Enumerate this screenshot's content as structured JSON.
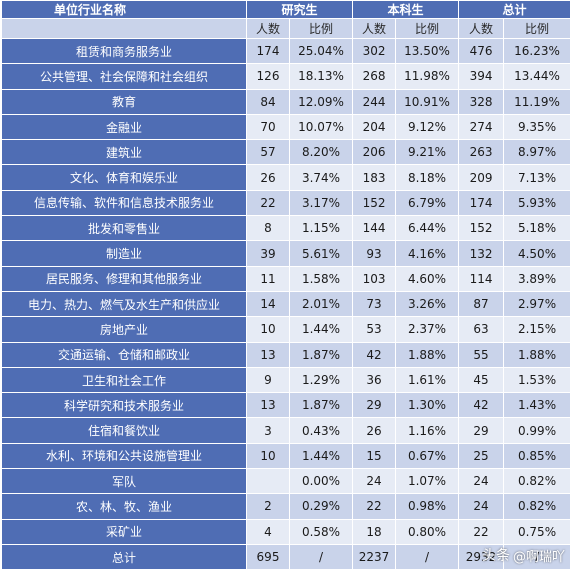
{
  "table": {
    "header": {
      "corner": "单位行业名称",
      "groups": [
        "研究生",
        "本科生",
        "总计"
      ],
      "sub": [
        "人数",
        "比例",
        "人数",
        "比例",
        "人数",
        "比例"
      ]
    },
    "rows": [
      {
        "name": "租赁和商务服务业",
        "cells": [
          "174",
          "25.04%",
          "302",
          "13.50%",
          "476",
          "16.23%"
        ]
      },
      {
        "name": "公共管理、社会保障和社会组织",
        "cells": [
          "126",
          "18.13%",
          "268",
          "11.98%",
          "394",
          "13.44%"
        ]
      },
      {
        "name": "教育",
        "cells": [
          "84",
          "12.09%",
          "244",
          "10.91%",
          "328",
          "11.19%"
        ]
      },
      {
        "name": "金融业",
        "cells": [
          "70",
          "10.07%",
          "204",
          "9.12%",
          "274",
          "9.35%"
        ]
      },
      {
        "name": "建筑业",
        "cells": [
          "57",
          "8.20%",
          "206",
          "9.21%",
          "263",
          "8.97%"
        ]
      },
      {
        "name": "文化、体育和娱乐业",
        "cells": [
          "26",
          "3.74%",
          "183",
          "8.18%",
          "209",
          "7.13%"
        ]
      },
      {
        "name": "信息传输、软件和信息技术服务业",
        "cells": [
          "22",
          "3.17%",
          "152",
          "6.79%",
          "174",
          "5.93%"
        ]
      },
      {
        "name": "批发和零售业",
        "cells": [
          "8",
          "1.15%",
          "144",
          "6.44%",
          "152",
          "5.18%"
        ]
      },
      {
        "name": "制造业",
        "cells": [
          "39",
          "5.61%",
          "93",
          "4.16%",
          "132",
          "4.50%"
        ]
      },
      {
        "name": "居民服务、修理和其他服务业",
        "cells": [
          "11",
          "1.58%",
          "103",
          "4.60%",
          "114",
          "3.89%"
        ]
      },
      {
        "name": "电力、热力、燃气及水生产和供应业",
        "cells": [
          "14",
          "2.01%",
          "73",
          "3.26%",
          "87",
          "2.97%"
        ]
      },
      {
        "name": "房地产业",
        "cells": [
          "10",
          "1.44%",
          "53",
          "2.37%",
          "63",
          "2.15%"
        ]
      },
      {
        "name": "交通运输、仓储和邮政业",
        "cells": [
          "13",
          "1.87%",
          "42",
          "1.88%",
          "55",
          "1.88%"
        ]
      },
      {
        "name": "卫生和社会工作",
        "cells": [
          "9",
          "1.29%",
          "36",
          "1.61%",
          "45",
          "1.53%"
        ]
      },
      {
        "name": "科学研究和技术服务业",
        "cells": [
          "13",
          "1.87%",
          "29",
          "1.30%",
          "42",
          "1.43%"
        ]
      },
      {
        "name": "住宿和餐饮业",
        "cells": [
          "3",
          "0.43%",
          "26",
          "1.16%",
          "29",
          "0.99%"
        ]
      },
      {
        "name": "水利、环境和公共设施管理业",
        "cells": [
          "10",
          "1.44%",
          "15",
          "0.67%",
          "25",
          "0.85%"
        ]
      },
      {
        "name": "军队",
        "cells": [
          "",
          "0.00%",
          "24",
          "1.07%",
          "24",
          "0.82%"
        ]
      },
      {
        "name": "农、林、牧、渔业",
        "cells": [
          "2",
          "0.29%",
          "22",
          "0.98%",
          "24",
          "0.82%"
        ]
      },
      {
        "name": "采矿业",
        "cells": [
          "4",
          "0.58%",
          "18",
          "0.80%",
          "22",
          "0.75%"
        ]
      },
      {
        "name": "总计",
        "cells": [
          "695",
          "/",
          "2237",
          "/",
          "2932",
          "/"
        ]
      }
    ]
  },
  "watermark": {
    "source": "头条",
    "handle": "@啊瑞吖"
  }
}
